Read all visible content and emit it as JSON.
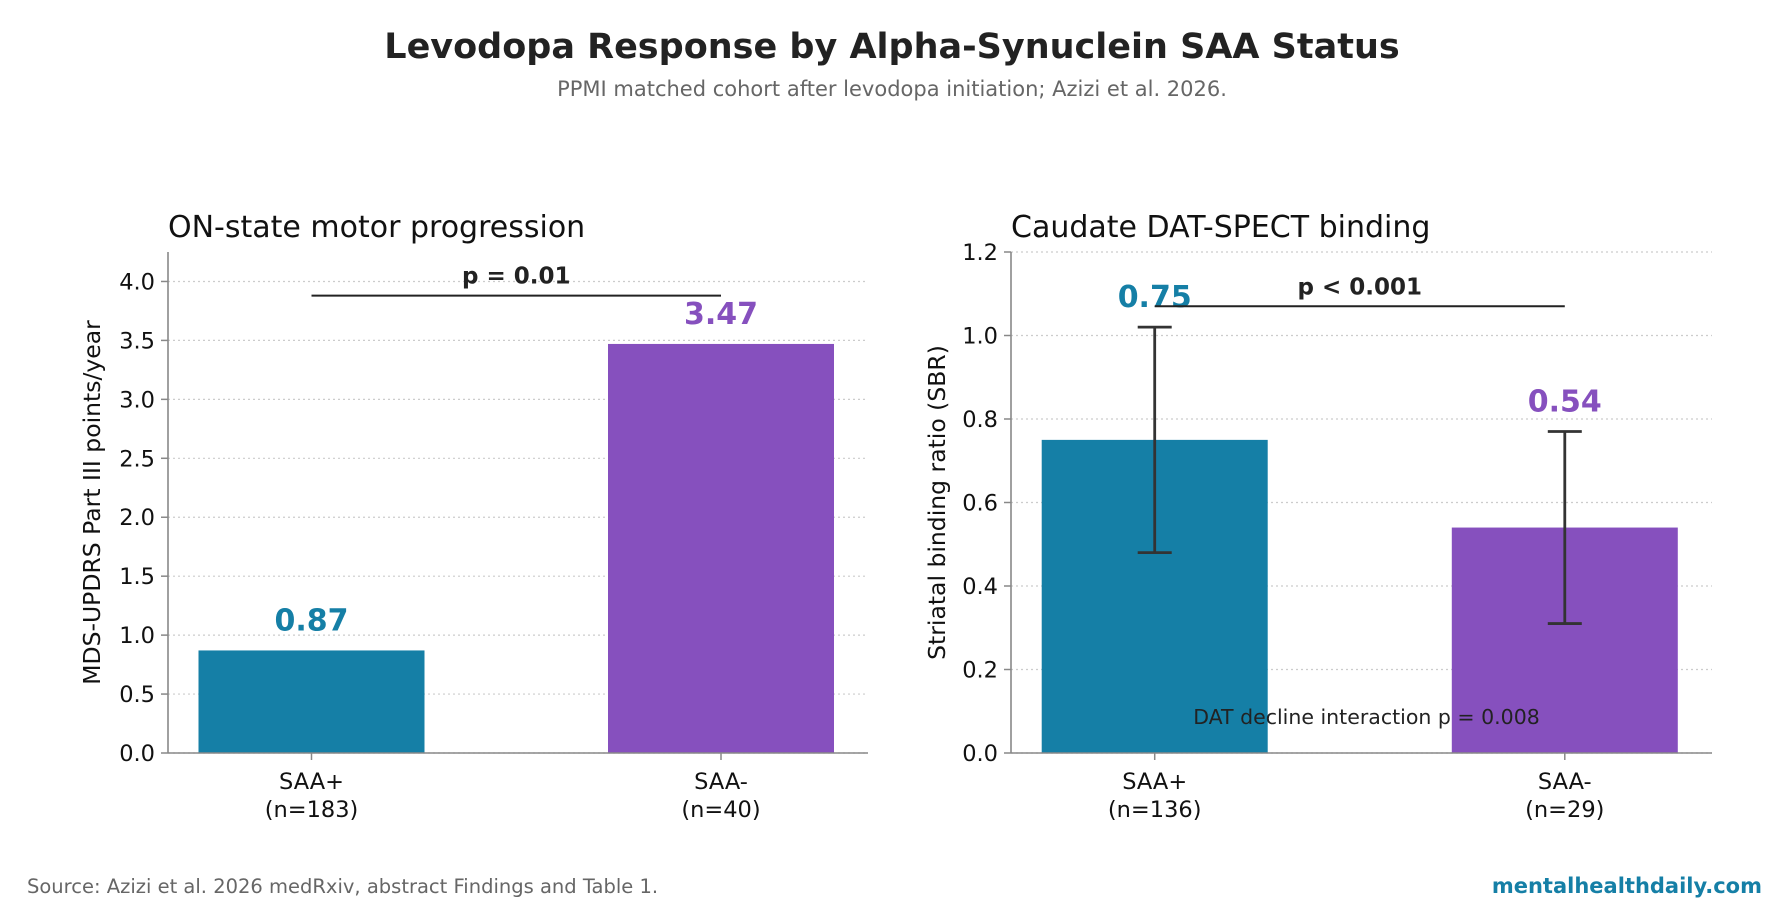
{
  "title": "Levodopa Response by Alpha-Synuclein SAA Status",
  "subtitle": "PPMI matched cohort after levodopa initiation; Azizi et al. 2026.",
  "source": "Source: Azizi et al. 2026 medRxiv, abstract Findings and Table 1.",
  "brand": "mentalhealthdaily.com",
  "colors": {
    "saa_pos": "#157fa6",
    "saa_neg": "#8650be",
    "brand": "#157fa6",
    "sig_line": "#222222",
    "error_bar": "#333333",
    "grid": "#cccccc",
    "axis": "#888888"
  },
  "chart_data": [
    {
      "type": "bar",
      "title": "ON-state motor progression",
      "ylabel": "MDS-UPDRS Part III points/year",
      "categories": [
        [
          "SAA+",
          "(n=183)"
        ],
        [
          "SAA-",
          "(n=40)"
        ]
      ],
      "values": [
        0.87,
        3.47
      ],
      "value_labels": [
        "0.87",
        "3.47"
      ],
      "ylim": [
        0,
        4.25
      ],
      "yticks": [
        "0.0",
        "0.5",
        "1.0",
        "1.5",
        "2.0",
        "2.5",
        "3.0",
        "3.5",
        "4.0"
      ],
      "grid": "horizontal dotted",
      "significance": {
        "label": "p = 0.01",
        "level": 3.88
      },
      "error_bars": null,
      "annotation": null
    },
    {
      "type": "bar",
      "title": "Caudate DAT-SPECT binding",
      "ylabel": "Striatal binding ratio (SBR)",
      "categories": [
        [
          "SAA+",
          "(n=136)"
        ],
        [
          "SAA-",
          "(n=29)"
        ]
      ],
      "values": [
        0.75,
        0.54
      ],
      "value_labels": [
        "0.75",
        "0.54"
      ],
      "ylim": [
        0,
        1.2
      ],
      "yticks": [
        "0.0",
        "0.2",
        "0.4",
        "0.6",
        "0.8",
        "1.0",
        "1.2"
      ],
      "grid": "horizontal dotted",
      "significance": {
        "label": "p < 0.001",
        "level": 1.07
      },
      "error_bars": [
        [
          0.48,
          1.02
        ],
        [
          0.31,
          0.77
        ]
      ],
      "annotation": "DAT decline interaction p = 0.008"
    }
  ]
}
